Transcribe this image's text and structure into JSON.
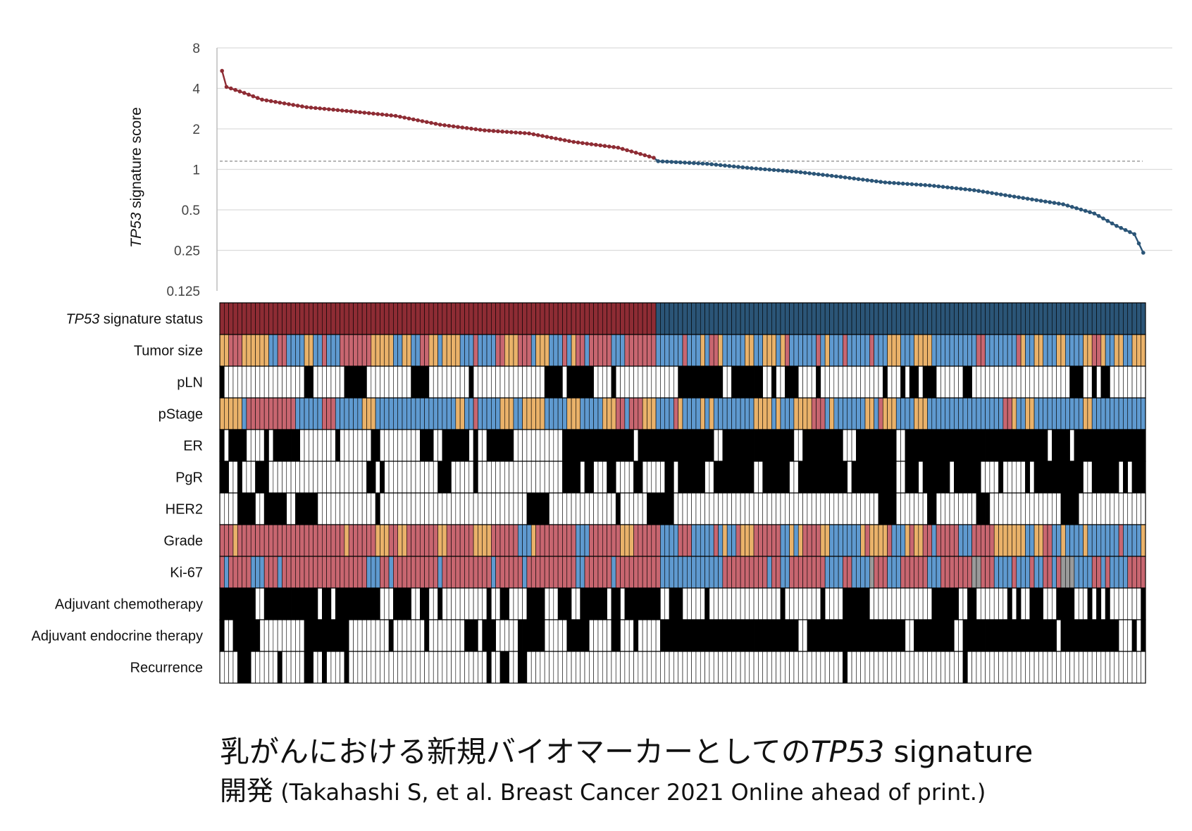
{
  "chart_data": {
    "type": "line+heatmap",
    "title": "",
    "y_axis": {
      "label_italic": "TP53",
      "label_rest": " signature score",
      "scale": "log2",
      "ticks": [
        "8",
        "4",
        "2",
        "1",
        "0.5",
        "0.25",
        "0.125"
      ],
      "ylim": [
        0.125,
        8
      ]
    },
    "threshold": 1.15,
    "n_samples": 208,
    "n_high": 98,
    "score_profile": [
      {
        "sample": 1,
        "score": 5.4
      },
      {
        "sample": 2,
        "score": 4.1
      },
      {
        "sample": 6,
        "score": 3.7
      },
      {
        "sample": 10,
        "score": 3.3
      },
      {
        "sample": 20,
        "score": 2.9
      },
      {
        "sample": 30,
        "score": 2.7
      },
      {
        "sample": 40,
        "score": 2.5
      },
      {
        "sample": 50,
        "score": 2.15
      },
      {
        "sample": 60,
        "score": 1.95
      },
      {
        "sample": 70,
        "score": 1.85
      },
      {
        "sample": 80,
        "score": 1.6
      },
      {
        "sample": 90,
        "score": 1.45
      },
      {
        "sample": 98,
        "score": 1.22
      },
      {
        "sample": 99,
        "score": 1.15
      },
      {
        "sample": 110,
        "score": 1.1
      },
      {
        "sample": 120,
        "score": 1.02
      },
      {
        "sample": 130,
        "score": 0.96
      },
      {
        "sample": 140,
        "score": 0.88
      },
      {
        "sample": 150,
        "score": 0.8
      },
      {
        "sample": 160,
        "score": 0.76
      },
      {
        "sample": 170,
        "score": 0.7
      },
      {
        "sample": 180,
        "score": 0.62
      },
      {
        "sample": 190,
        "score": 0.55
      },
      {
        "sample": 197,
        "score": 0.47
      },
      {
        "sample": 202,
        "score": 0.38
      },
      {
        "sample": 206,
        "score": 0.33
      },
      {
        "sample": 208,
        "score": 0.24
      }
    ],
    "series_colors": {
      "high": "#8e2c34",
      "low": "#2b5577"
    },
    "track_colors": {
      "red": "#c86670",
      "blue": "#5f9ad0",
      "orange": "#eab26a",
      "gray": "#9a9a9a",
      "black": "#000000",
      "white": "#ffffff",
      "high": "#8e2c34",
      "low": "#2b5577"
    },
    "tracks": [
      {
        "italic": "TP53",
        "label": " signature status",
        "kind": "status"
      },
      {
        "italic": "",
        "label": "Tumor size",
        "kind": "cat3",
        "seed": 11,
        "p_high": [
          0.2,
          0.3
        ],
        "p_low": [
          0.15,
          0.25
        ]
      },
      {
        "italic": "",
        "label": "pLN",
        "kind": "bin",
        "seed": 23,
        "p_high": 0.33,
        "p_low": 0.25
      },
      {
        "italic": "",
        "label": "pStage",
        "kind": "cat3",
        "seed": 37,
        "p_high": [
          0.2,
          0.3
        ],
        "p_low": [
          0.1,
          0.25
        ]
      },
      {
        "italic": "",
        "label": "ER",
        "kind": "bin",
        "seed": 41,
        "p_high": 0.45,
        "p_low": 0.9
      },
      {
        "italic": "",
        "label": "PgR",
        "kind": "bin",
        "seed": 53,
        "p_high": 0.3,
        "p_low": 0.75
      },
      {
        "italic": "",
        "label": "HER2",
        "kind": "bin",
        "seed": 67,
        "p_high": 0.1,
        "p_low": 0.04
      },
      {
        "italic": "",
        "label": "Grade",
        "kind": "cat3",
        "seed": 71,
        "p_high": [
          0.7,
          0.18
        ],
        "p_low": [
          0.25,
          0.35
        ]
      },
      {
        "italic": "",
        "label": "Ki-67",
        "kind": "cat4",
        "seed": 83,
        "p_high": [
          0.75,
          0.2,
          0.05
        ],
        "p_low": [
          0.4,
          0.52,
          0.08
        ]
      },
      {
        "italic": "",
        "label": "Adjuvant chemotherapy",
        "kind": "bin",
        "seed": 97,
        "p_high": 0.7,
        "p_low": 0.3
      },
      {
        "italic": "",
        "label": "Adjuvant endocrine therapy",
        "kind": "bin",
        "seed": 101,
        "p_high": 0.4,
        "p_low": 0.88
      },
      {
        "italic": "",
        "label": "Recurrence",
        "kind": "bin",
        "seed": 113,
        "p_high": 0.2,
        "p_low": 0.07
      }
    ]
  },
  "caption": {
    "line1_jp": "乳がんにおける新規バイオマーカーとしての",
    "line1_italic": "TP53",
    "line1_end": " signature",
    "line2_jp": "開発",
    "line2_ref": " (Takahashi S, et al. Breast Cancer 2021 Online ahead of print.)"
  }
}
